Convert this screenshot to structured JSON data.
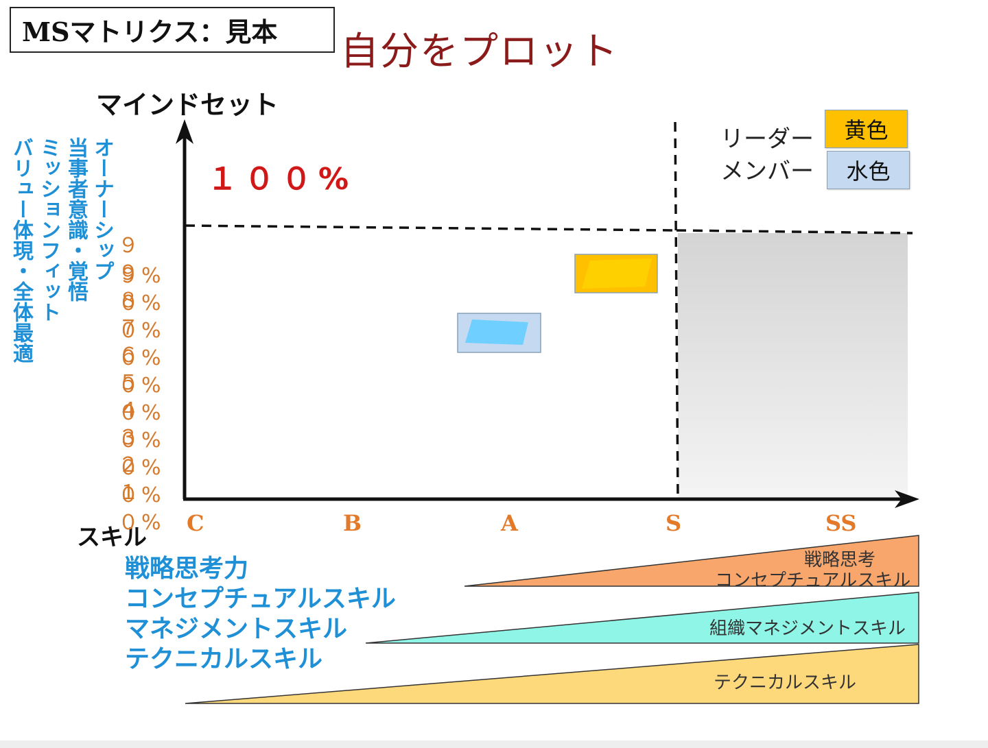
{
  "header": {
    "title": "MSマトリクス：見本",
    "subtitle": "自分をプロット"
  },
  "axes": {
    "y_title": "マインドセット",
    "x_title": "スキル",
    "top_label": "１００%",
    "y_ticks": [
      "９９%",
      "９０%",
      "８０%",
      "７０%",
      "６０%",
      "５０%",
      "４０%",
      "３０%",
      "２０%",
      "１０%"
    ],
    "x_ticks": [
      "C",
      "B",
      "A",
      "S",
      "SS"
    ]
  },
  "mindset_items": [
    "オーナーシップ",
    "当事者意識・覚悟",
    "ミッションフィット",
    "バリュー体現・全体最適"
  ],
  "skills_list": [
    "戦略思考力",
    "コンセプチュアルスキル",
    "マネジメントスキル",
    "テクニカルスキル"
  ],
  "legend": {
    "leader_label": "リーダー",
    "leader_color_name": "黄色",
    "member_label": "メンバー",
    "member_color_name": "水色",
    "leader_color": "#ffc000",
    "member_color": "#c5d9f1"
  },
  "plotted_points": {
    "leader": {
      "skill_level": "A–S",
      "mindset_percent": 85,
      "color": "#ffc000"
    },
    "member": {
      "skill_level": "A",
      "mindset_percent": 68,
      "color": "#6fd0ff"
    }
  },
  "wedges": {
    "strategy_line1": "戦略思考",
    "strategy_line2": "コンセプチュアルスキル",
    "management": "組織マネジメントスキル",
    "technical": "テクニカルスキル",
    "strategy_color": "#f9a66c",
    "management_color": "#8ff5e6",
    "technical_color": "#fdd97c"
  },
  "colors": {
    "accent_red": "#8b1a1a",
    "percent_red": "#d01818",
    "blue_text": "#1f8fd6",
    "orange_text": "#d57a2c"
  }
}
